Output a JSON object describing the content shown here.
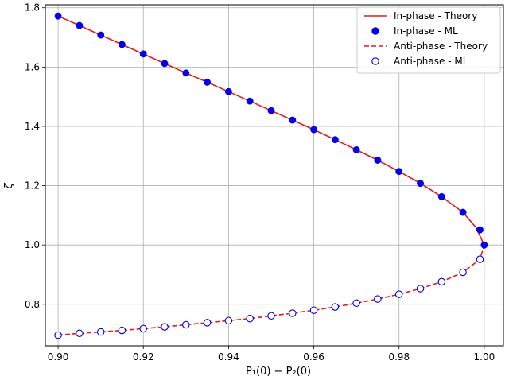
{
  "chart_data": {
    "type": "scatter",
    "title": "",
    "xlabel": "P₁(0) − P₂(0)",
    "ylabel": "ζ",
    "xlim": [
      0.897,
      1.0045
    ],
    "ylim": [
      0.66,
      1.81
    ],
    "xticks": [
      0.9,
      0.92,
      0.94,
      0.96,
      0.98,
      1.0
    ],
    "xtick_labels": [
      "0.90",
      "0.92",
      "0.94",
      "0.96",
      "0.98",
      "1.00"
    ],
    "yticks": [
      0.8,
      1.0,
      1.2,
      1.4,
      1.6,
      1.8
    ],
    "ytick_labels": [
      "0.8",
      "1.0",
      "1.2",
      "1.4",
      "1.6",
      "1.8"
    ],
    "grid": true,
    "legend_position": "top-right",
    "series": [
      {
        "name": "In-phase - Theory",
        "kind": "line",
        "style": "solid",
        "color": "#e41a1c",
        "x": [
          0.9,
          0.905,
          0.91,
          0.915,
          0.92,
          0.925,
          0.93,
          0.935,
          0.94,
          0.945,
          0.95,
          0.955,
          0.96,
          0.965,
          0.97,
          0.975,
          0.98,
          0.985,
          0.99,
          0.995,
          0.998,
          1.0
        ],
        "y": [
          1.772,
          1.74,
          1.708,
          1.676,
          1.644,
          1.612,
          1.58,
          1.549,
          1.517,
          1.485,
          1.453,
          1.421,
          1.389,
          1.355,
          1.321,
          1.286,
          1.248,
          1.208,
          1.163,
          1.11,
          1.06,
          1.0
        ]
      },
      {
        "name": "In-phase - ML",
        "kind": "marker",
        "marker": "filled-circle",
        "color": "#0000ee",
        "x": [
          0.9,
          0.905,
          0.91,
          0.915,
          0.92,
          0.925,
          0.93,
          0.935,
          0.94,
          0.945,
          0.95,
          0.955,
          0.96,
          0.965,
          0.97,
          0.975,
          0.98,
          0.985,
          0.99,
          0.995,
          0.999,
          1.0
        ],
        "y": [
          1.772,
          1.74,
          1.708,
          1.676,
          1.644,
          1.612,
          1.58,
          1.549,
          1.517,
          1.485,
          1.453,
          1.421,
          1.389,
          1.355,
          1.321,
          1.286,
          1.248,
          1.208,
          1.163,
          1.11,
          1.051,
          1.0
        ]
      },
      {
        "name": "Anti-phase - Theory",
        "kind": "line",
        "style": "dashed",
        "color": "#e41a1c",
        "x": [
          0.9,
          0.905,
          0.91,
          0.915,
          0.92,
          0.925,
          0.93,
          0.935,
          0.94,
          0.945,
          0.95,
          0.955,
          0.96,
          0.965,
          0.97,
          0.975,
          0.98,
          0.985,
          0.99,
          0.995,
          0.999,
          1.0
        ],
        "y": [
          0.696,
          0.702,
          0.707,
          0.712,
          0.718,
          0.724,
          0.731,
          0.738,
          0.745,
          0.752,
          0.761,
          0.77,
          0.78,
          0.791,
          0.804,
          0.818,
          0.834,
          0.853,
          0.876,
          0.908,
          0.952,
          1.0
        ]
      },
      {
        "name": "Anti-phase - ML",
        "kind": "marker",
        "marker": "open-circle",
        "color": "#0000ee",
        "x": [
          0.9,
          0.905,
          0.91,
          0.915,
          0.92,
          0.925,
          0.93,
          0.935,
          0.94,
          0.945,
          0.95,
          0.955,
          0.96,
          0.965,
          0.97,
          0.975,
          0.98,
          0.985,
          0.99,
          0.995,
          0.999
        ],
        "y": [
          0.696,
          0.702,
          0.707,
          0.712,
          0.718,
          0.724,
          0.731,
          0.738,
          0.745,
          0.752,
          0.761,
          0.77,
          0.78,
          0.791,
          0.804,
          0.818,
          0.834,
          0.853,
          0.876,
          0.908,
          0.952
        ]
      }
    ]
  }
}
